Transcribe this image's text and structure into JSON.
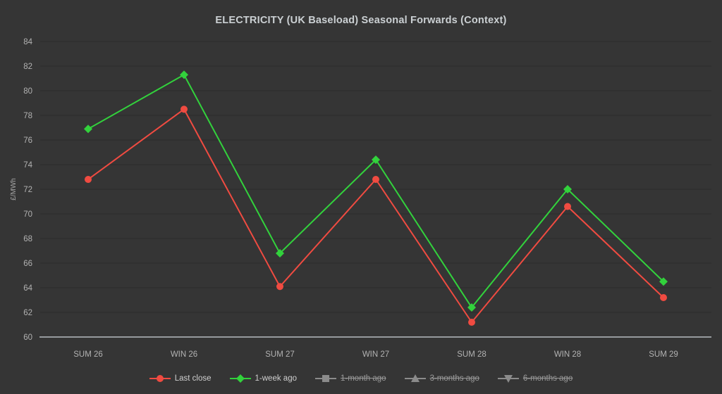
{
  "title": "ELECTRICITY (UK Baseload) Seasonal Forwards (Context)",
  "chart_data": {
    "type": "line",
    "categories": [
      "SUM 26",
      "WIN 26",
      "SUM 27",
      "WIN 27",
      "SUM 28",
      "WIN 28",
      "SUM 29"
    ],
    "series": [
      {
        "name": "Last close",
        "color": "#f04b41",
        "marker": "circle",
        "visible": true,
        "values": [
          72.8,
          78.5,
          64.1,
          72.8,
          61.2,
          70.6,
          63.2
        ]
      },
      {
        "name": "1-week ago",
        "color": "#32d23c",
        "marker": "diamond",
        "visible": true,
        "values": [
          76.9,
          81.3,
          66.8,
          74.4,
          62.4,
          72.0,
          64.5
        ]
      },
      {
        "name": "1-month ago",
        "color": "#8b8b8b",
        "marker": "square",
        "visible": false,
        "values": []
      },
      {
        "name": "3-months ago",
        "color": "#8b8b8b",
        "marker": "triangle-up",
        "visible": false,
        "values": []
      },
      {
        "name": "6-months ago",
        "color": "#8b8b8b",
        "marker": "triangle-down",
        "visible": false,
        "values": []
      }
    ],
    "ylabel": "£/MWh",
    "ylim": [
      60,
      84
    ],
    "ytick_step": 2,
    "grid": true,
    "legend_position": "bottom"
  },
  "colors": {
    "background": "#353535",
    "gridline": "#2c2c2c",
    "axis_line": "#979b9e",
    "tick_text": "#b2b2b2",
    "axis_title_text": "#a5a5a5",
    "title_text": "#cbd0d3",
    "legend_text": "#cfcfcf",
    "legend_disabled_text": "#9a9a9a"
  }
}
